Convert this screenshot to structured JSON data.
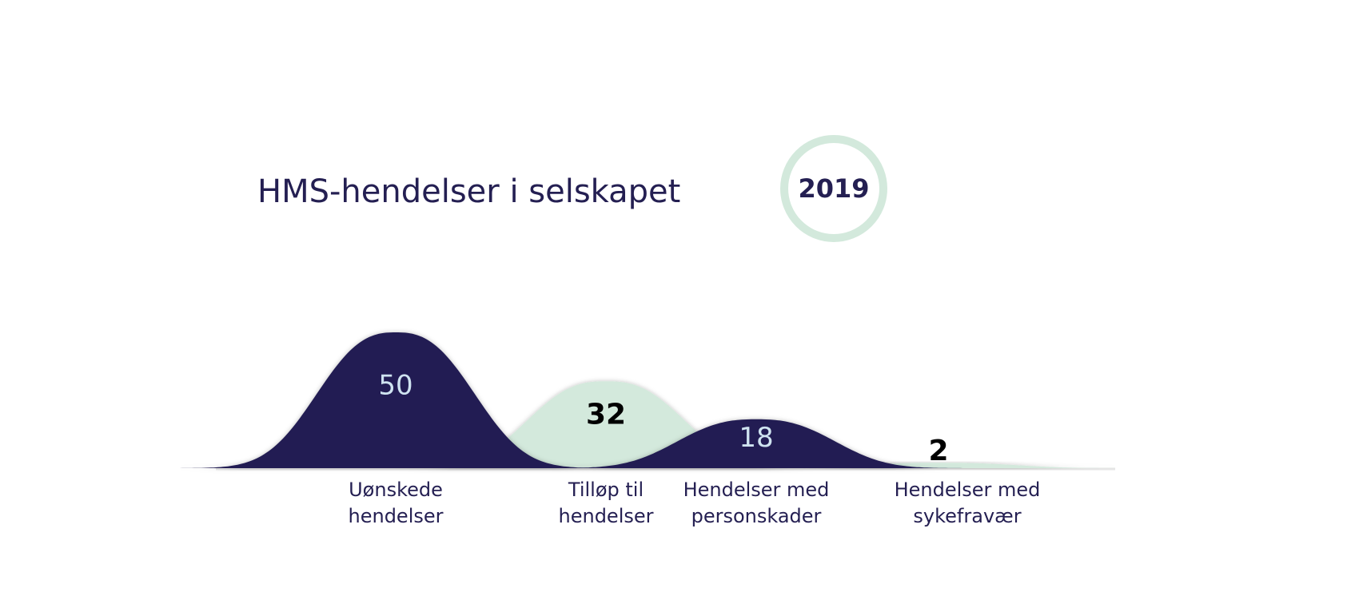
{
  "chart_data": {
    "type": "mound",
    "title": "HMS-hendelser i selskapet",
    "year": "2019",
    "categories": [
      "Uønskede hendelser",
      "Tilløp til hendelser",
      "Hendelser med personskader",
      "Hendelser med sykefravær"
    ],
    "values": [
      50,
      32,
      18,
      2
    ],
    "colors": [
      "#241f52",
      "#d3e9dc",
      "#241f52",
      "#d3e9dc"
    ],
    "label_colors": [
      "#cfe3f0",
      "#000000",
      "#cfe3f0",
      "#000000"
    ]
  }
}
